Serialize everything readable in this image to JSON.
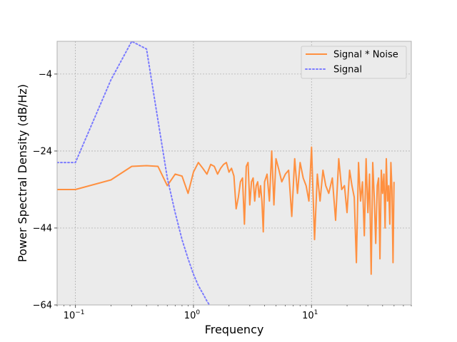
{
  "chart_data": {
    "type": "line",
    "title": "",
    "xlabel": "Frequency",
    "ylabel": "Power Spectral Density (dB/Hz)",
    "xscale": "log",
    "xlim": [
      0.07,
      70
    ],
    "ylim": [
      -64,
      4.5
    ],
    "grid": true,
    "legend_position": "top-right",
    "x_ticks": [
      {
        "value": 0.1,
        "base": "10",
        "exp": "−1"
      },
      {
        "value": 1,
        "base": "10",
        "exp": "0"
      },
      {
        "value": 10,
        "base": "10",
        "exp": "1"
      }
    ],
    "y_ticks": [
      {
        "value": -4,
        "label": "−4"
      },
      {
        "value": -24,
        "label": "−24"
      },
      {
        "value": -44,
        "label": "−44"
      },
      {
        "value": -64,
        "label": "−64"
      }
    ],
    "series": [
      {
        "name": "Signal * Noise",
        "color": "#ff9040",
        "style": "solid",
        "x": [
          0.07,
          0.1,
          0.2,
          0.3,
          0.4,
          0.5,
          0.6,
          0.7,
          0.8,
          0.9,
          1.0,
          1.1,
          1.2,
          1.3,
          1.4,
          1.5,
          1.6,
          1.7,
          1.8,
          1.9,
          2.0,
          2.1,
          2.2,
          2.3,
          2.4,
          2.5,
          2.6,
          2.7,
          2.8,
          2.9,
          3.0,
          3.1,
          3.2,
          3.3,
          3.4,
          3.5,
          3.6,
          3.7,
          3.8,
          3.9,
          4.0,
          4.2,
          4.4,
          4.6,
          4.8,
          5.0,
          5.3,
          5.6,
          6.0,
          6.4,
          6.8,
          7.2,
          7.6,
          8.0,
          8.5,
          9.0,
          9.5,
          10,
          10.6,
          11.2,
          11.8,
          12.5,
          13.2,
          14,
          15,
          16,
          17,
          18,
          19,
          20,
          21,
          22,
          23,
          24,
          25,
          26,
          27,
          28,
          29,
          30,
          31,
          32,
          33,
          34,
          35,
          36,
          37,
          38,
          39,
          40,
          41,
          42,
          43,
          44,
          45,
          46,
          47,
          48,
          49,
          50
        ],
        "y": [
          -34,
          -34,
          -31.5,
          -28,
          -27.8,
          -28,
          -33,
          -30,
          -30.5,
          -35,
          -29.5,
          -27,
          -28.5,
          -30,
          -27.5,
          -28,
          -30,
          -28.5,
          -27.5,
          -27,
          -29.5,
          -28.5,
          -30.5,
          -39,
          -36,
          -32,
          -31,
          -43,
          -28,
          -27,
          -38,
          -32,
          -31,
          -37,
          -33,
          -32,
          -36,
          -33,
          -37,
          -45,
          -32,
          -30,
          -37,
          -24,
          -38,
          -26,
          -29,
          -32,
          -30,
          -29,
          -41,
          -26,
          -35,
          -27,
          -31,
          -33,
          -37,
          -23,
          -47,
          -30,
          -37,
          -29,
          -33,
          -35,
          -31,
          -42,
          -26,
          -34,
          -33,
          -40,
          -29,
          -33,
          -36,
          -53,
          -27,
          -37,
          -32,
          -46,
          -26,
          -40,
          -30,
          -56,
          -27,
          -36,
          -48,
          -33,
          -31,
          -52,
          -29,
          -35,
          -30,
          -44,
          -26,
          -37,
          -33,
          -43,
          -27,
          -34,
          -53,
          -32
        ]
      },
      {
        "name": "Signal",
        "color": "#7b7bff",
        "style": "dotted",
        "x": [
          0.07,
          0.1,
          0.2,
          0.3,
          0.4,
          0.5,
          0.6,
          0.7,
          0.8,
          0.9,
          1.0,
          1.1,
          1.2,
          1.3,
          1.4
        ],
        "y": [
          -27,
          -27,
          -5.5,
          4.5,
          2.5,
          -16,
          -31,
          -40,
          -47,
          -52,
          -56,
          -59,
          -61,
          -63,
          -64.5
        ]
      }
    ]
  }
}
